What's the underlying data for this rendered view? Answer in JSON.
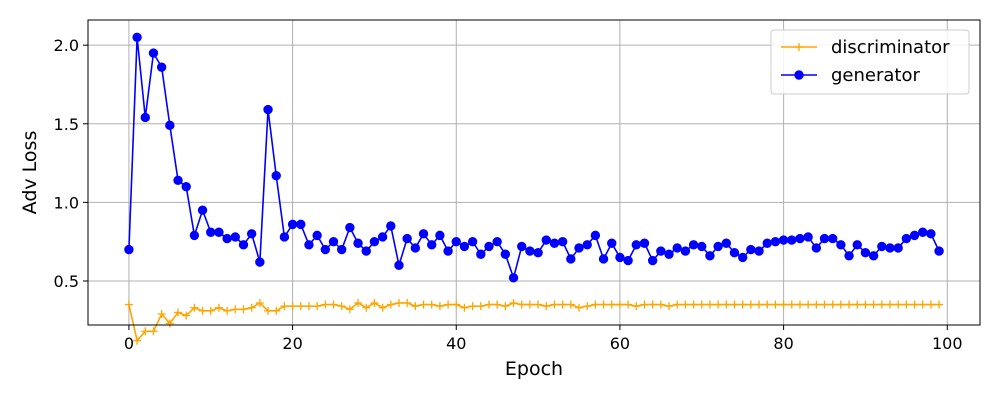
{
  "chart_data": {
    "type": "line",
    "xlabel": "Epoch",
    "ylabel": "Adv Loss",
    "xlim": [
      -5,
      104
    ],
    "ylim": [
      0.22,
      2.16
    ],
    "xticks": [
      0,
      20,
      40,
      60,
      80,
      100
    ],
    "yticks": [
      0.5,
      1.0,
      1.5,
      2.0
    ],
    "xtick_labels": [
      "0",
      "20",
      "40",
      "60",
      "80",
      "100"
    ],
    "ytick_labels": [
      "0.5",
      "1.0",
      "1.5",
      "2.0"
    ],
    "grid": true,
    "legend_position": "top-right",
    "series": [
      {
        "name": "discriminator",
        "color": "#ffa500",
        "marker": "plus",
        "values": [
          0.35,
          0.12,
          0.18,
          0.18,
          0.29,
          0.23,
          0.3,
          0.28,
          0.33,
          0.31,
          0.31,
          0.33,
          0.31,
          0.32,
          0.32,
          0.33,
          0.36,
          0.31,
          0.31,
          0.34,
          0.34,
          0.34,
          0.34,
          0.34,
          0.35,
          0.35,
          0.34,
          0.32,
          0.36,
          0.33,
          0.36,
          0.33,
          0.35,
          0.36,
          0.36,
          0.34,
          0.35,
          0.35,
          0.34,
          0.35,
          0.35,
          0.33,
          0.34,
          0.34,
          0.35,
          0.35,
          0.34,
          0.36,
          0.35,
          0.35,
          0.35,
          0.34,
          0.35,
          0.35,
          0.35,
          0.33,
          0.34,
          0.35,
          0.35,
          0.35,
          0.35,
          0.35,
          0.34,
          0.35,
          0.35,
          0.35,
          0.34,
          0.35,
          0.35,
          0.35,
          0.35,
          0.35,
          0.35,
          0.35,
          0.35,
          0.35,
          0.35,
          0.35,
          0.35,
          0.35,
          0.35,
          0.35,
          0.35,
          0.35,
          0.35,
          0.35,
          0.35,
          0.35,
          0.35,
          0.35,
          0.35,
          0.35,
          0.35,
          0.35,
          0.35,
          0.35,
          0.35,
          0.35,
          0.35,
          0.35
        ]
      },
      {
        "name": "generator",
        "color": "#0000ff",
        "marker": "circle",
        "values": [
          0.7,
          2.05,
          1.54,
          1.95,
          1.86,
          1.49,
          1.14,
          1.1,
          0.79,
          0.95,
          0.81,
          0.81,
          0.77,
          0.78,
          0.73,
          0.8,
          0.62,
          1.59,
          1.17,
          0.78,
          0.86,
          0.86,
          0.73,
          0.79,
          0.7,
          0.75,
          0.7,
          0.84,
          0.74,
          0.69,
          0.75,
          0.78,
          0.85,
          0.6,
          0.77,
          0.71,
          0.8,
          0.73,
          0.79,
          0.69,
          0.75,
          0.72,
          0.75,
          0.67,
          0.72,
          0.75,
          0.67,
          0.52,
          0.72,
          0.69,
          0.68,
          0.76,
          0.74,
          0.75,
          0.64,
          0.71,
          0.73,
          0.79,
          0.64,
          0.74,
          0.65,
          0.63,
          0.73,
          0.74,
          0.63,
          0.69,
          0.67,
          0.71,
          0.69,
          0.73,
          0.72,
          0.66,
          0.72,
          0.74,
          0.68,
          0.65,
          0.7,
          0.69,
          0.74,
          0.75,
          0.76,
          0.76,
          0.77,
          0.78,
          0.71,
          0.77,
          0.77,
          0.73,
          0.66,
          0.73,
          0.68,
          0.66,
          0.72,
          0.71,
          0.71,
          0.77,
          0.79,
          0.81,
          0.8,
          0.69
        ]
      }
    ]
  }
}
